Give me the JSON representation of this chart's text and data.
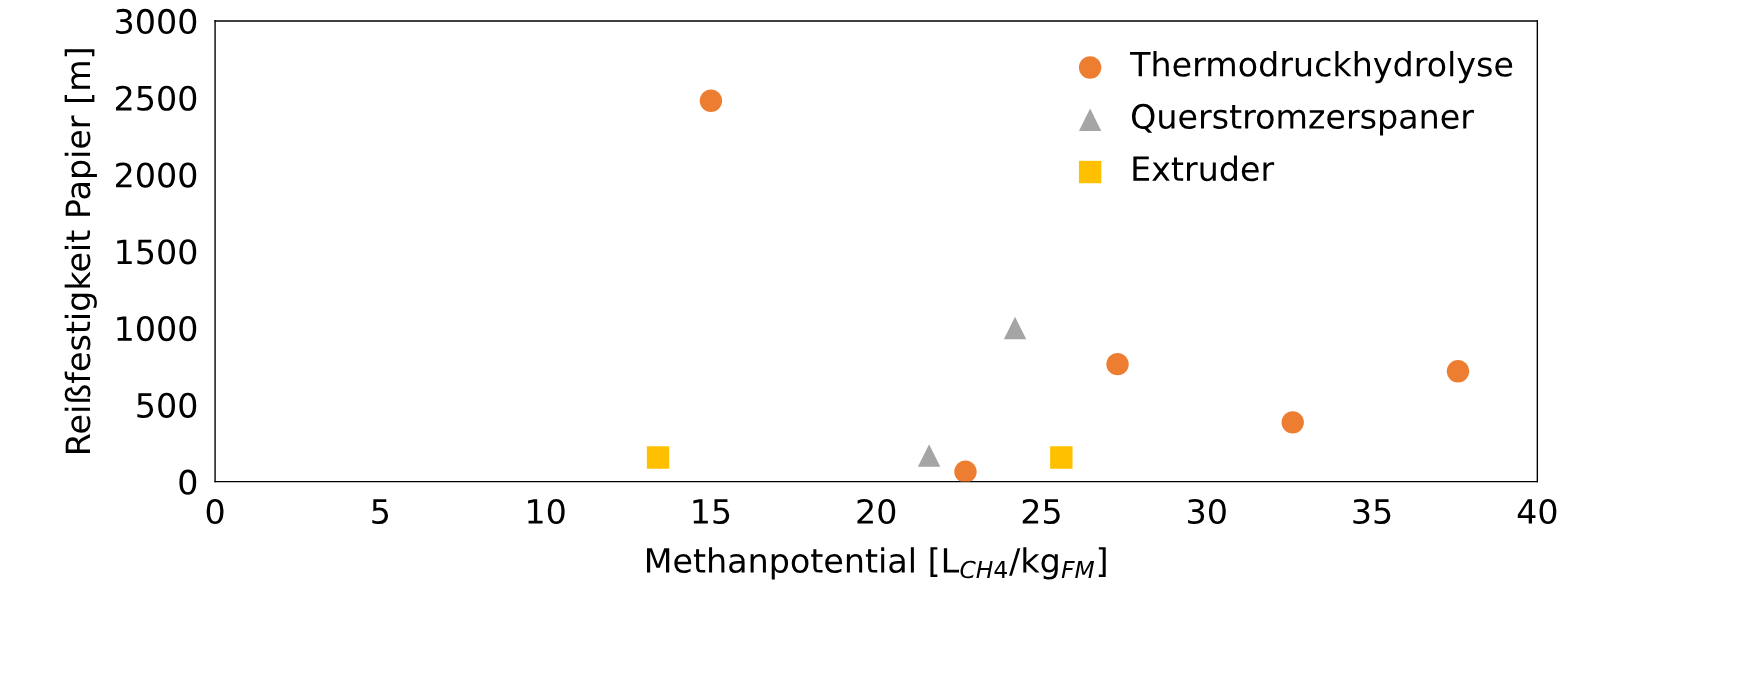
{
  "chart_data": {
    "type": "scatter",
    "xlabel": "Methanpotential [L$_{CH4}$/kg$_{FM}$]",
    "ylabel": "Reißfestigkeit Papier [m]",
    "series": [
      {
        "name": "Thermodruckhydrolyse",
        "color": "#ed7d31",
        "marker": "circle",
        "x": [
          15.0,
          22.7,
          27.3,
          32.6,
          37.6
        ],
        "values": [
          2480,
          65,
          765,
          386,
          719
        ]
      },
      {
        "name": "Querstromzerspaner",
        "color": "#a5a5a5",
        "marker": "triangle",
        "x": [
          21.6,
          24.2
        ],
        "values": [
          170,
          1000
        ]
      },
      {
        "name": "Extruder",
        "color": "#ffc000",
        "marker": "square",
        "x": [
          13.4,
          25.6
        ],
        "values": [
          157,
          157
        ]
      }
    ],
    "xlim": [
      0,
      40
    ],
    "xticks": [
      0,
      5,
      10,
      15,
      20,
      25,
      30,
      35,
      40
    ],
    "ylim": [
      0,
      3000
    ],
    "yticks": [
      0,
      500,
      1000,
      1500,
      2000,
      2500,
      3000
    ],
    "grid": false,
    "legend": "top right"
  }
}
